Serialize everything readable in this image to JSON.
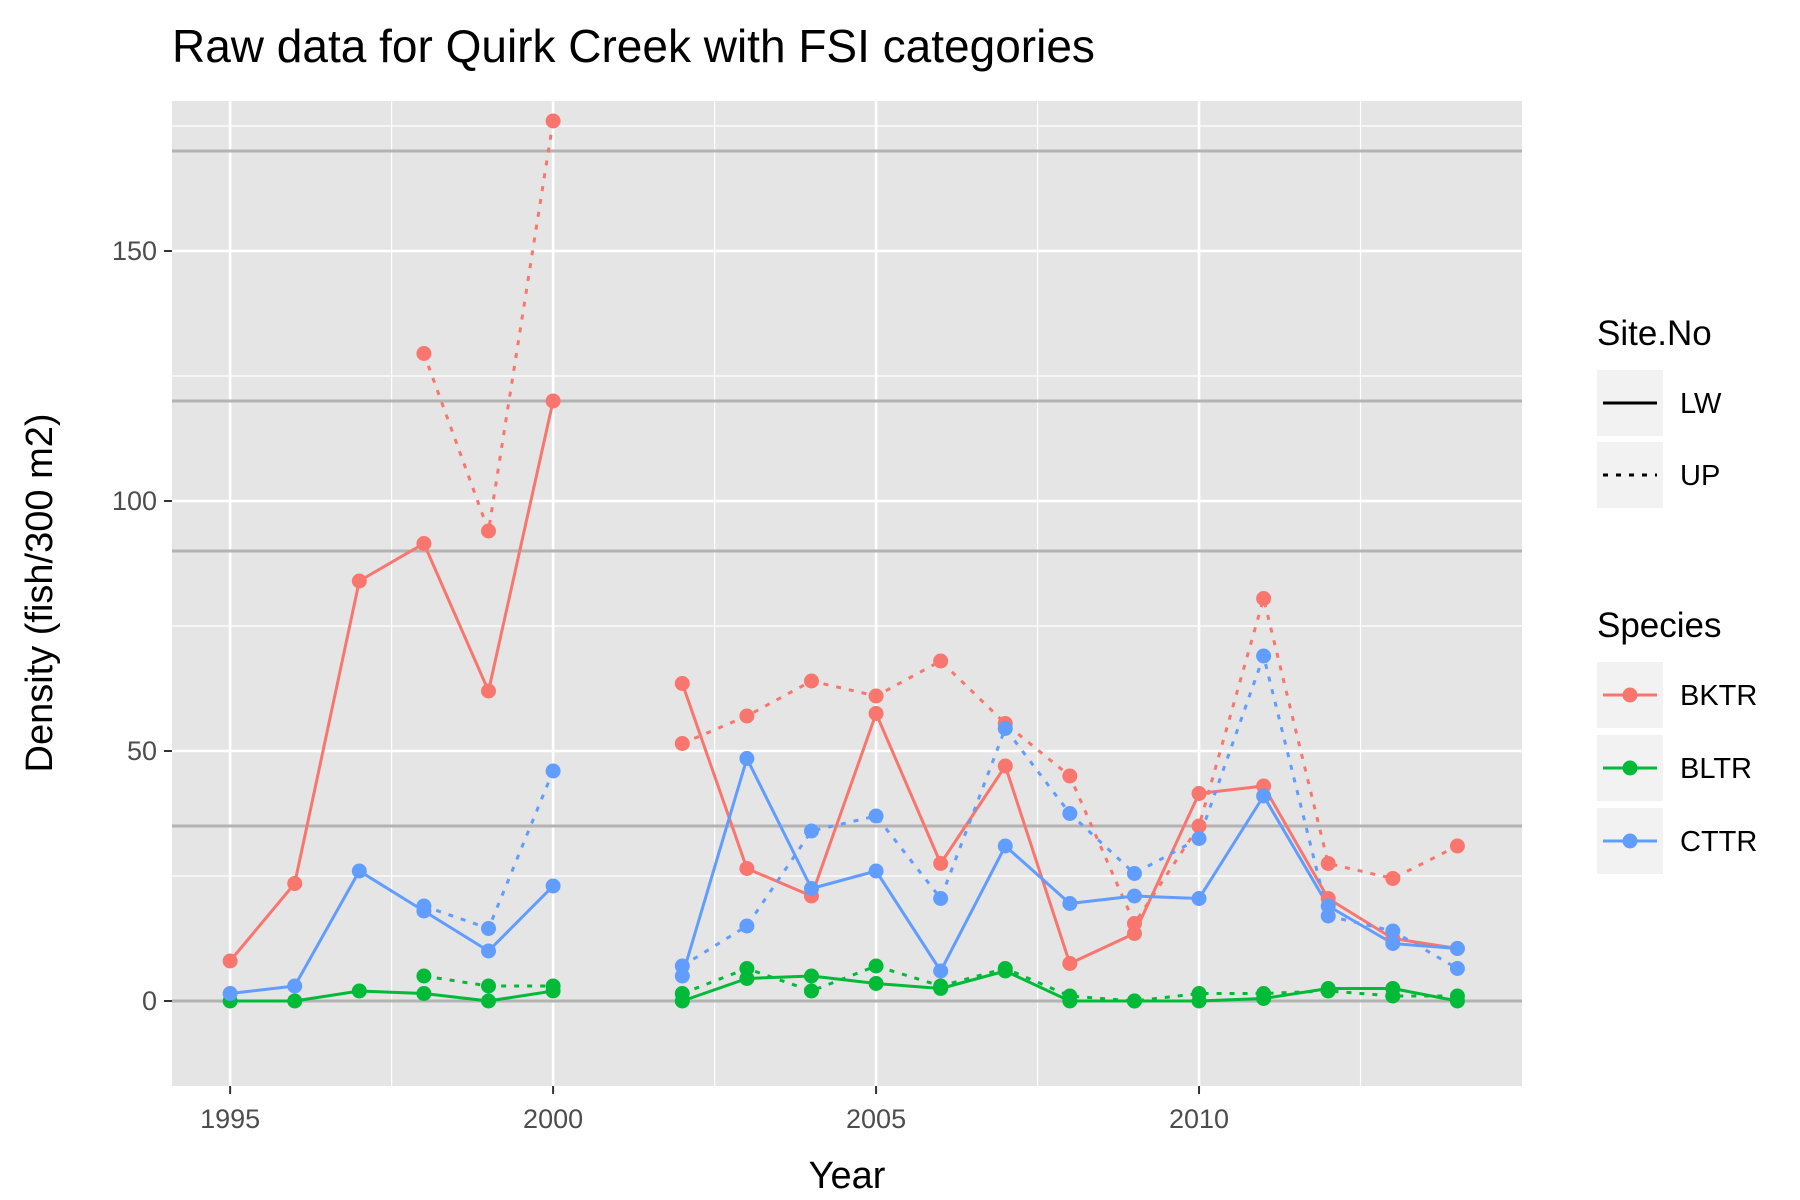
{
  "chart_data": {
    "type": "line",
    "title": "Raw data for Quirk Creek with FSI categories",
    "xlabel": "Year",
    "ylabel": "Density (fish/300 m2)",
    "xlim": [
      1994.1,
      2015.0
    ],
    "ylim": [
      -17,
      180
    ],
    "x_ticks": [
      1995,
      2000,
      2005,
      2010
    ],
    "x_tick_labels": [
      "1995",
      "2000",
      "2005",
      "2010"
    ],
    "y_ticks": [
      0,
      50,
      100,
      150
    ],
    "y_tick_labels": [
      "0",
      "50",
      "100",
      "150"
    ],
    "x_minor_ticks": [
      1997.5,
      2002.5,
      2007.5,
      2012.5
    ],
    "y_minor_ticks": [
      25,
      75,
      125,
      175
    ],
    "reference_lines": [
      0,
      35,
      90,
      120,
      170
    ],
    "grid": true,
    "legend_position": "right",
    "legends": {
      "site": {
        "title": "Site.No",
        "entries": [
          {
            "label": "LW",
            "dash": "solid"
          },
          {
            "label": "UP",
            "dash": "dotted"
          }
        ]
      },
      "species": {
        "title": "Species",
        "entries": [
          {
            "label": "BKTR",
            "color": "#F8766D"
          },
          {
            "label": "BLTR",
            "color": "#00BA38"
          },
          {
            "label": "CTTR",
            "color": "#619CFF"
          }
        ]
      }
    },
    "colors": {
      "BKTR": "#F8766D",
      "BLTR": "#00BA38",
      "CTTR": "#619CFF",
      "panel": "#E5E5E5",
      "grid": "#FFFFFF",
      "reference_line": "#B3B3B3"
    },
    "series": [
      {
        "species": "BKTR",
        "site": "LW",
        "segments": [
          [
            [
              1995,
              8
            ],
            [
              1996,
              23.5
            ],
            [
              1997,
              84
            ],
            [
              1998,
              91.5
            ],
            [
              1999,
              62
            ],
            [
              2000,
              120
            ]
          ],
          [
            [
              2002,
              63.5
            ],
            [
              2003,
              26.5
            ],
            [
              2004,
              21
            ],
            [
              2005,
              57.5
            ],
            [
              2006,
              27.5
            ],
            [
              2007,
              47
            ],
            [
              2008,
              7.5
            ],
            [
              2009,
              13.5
            ],
            [
              2010,
              41.5
            ],
            [
              2011,
              43
            ],
            [
              2012,
              20.5
            ],
            [
              2013,
              12.5
            ],
            [
              2014,
              10.5
            ]
          ]
        ]
      },
      {
        "species": "BKTR",
        "site": "UP",
        "segments": [
          [
            [
              1998,
              129.5
            ],
            [
              1999,
              94
            ],
            [
              2000,
              176
            ]
          ],
          [
            [
              2002,
              51.5
            ],
            [
              2003,
              57
            ],
            [
              2004,
              64
            ],
            [
              2005,
              61
            ],
            [
              2006,
              68
            ],
            [
              2007,
              55.5
            ],
            [
              2008,
              45
            ],
            [
              2009,
              15.5
            ],
            [
              2010,
              35
            ],
            [
              2011,
              80.5
            ],
            [
              2012,
              27.5
            ],
            [
              2013,
              24.5
            ],
            [
              2014,
              31
            ]
          ]
        ]
      },
      {
        "species": "BLTR",
        "site": "LW",
        "segments": [
          [
            [
              1995,
              0
            ],
            [
              1996,
              0
            ],
            [
              1997,
              2
            ],
            [
              1998,
              1.5
            ],
            [
              1999,
              0
            ],
            [
              2000,
              2
            ]
          ],
          [
            [
              2002,
              0
            ],
            [
              2003,
              4.5
            ],
            [
              2004,
              5
            ],
            [
              2005,
              3.5
            ],
            [
              2006,
              2.5
            ],
            [
              2007,
              6
            ],
            [
              2008,
              0
            ],
            [
              2009,
              0
            ],
            [
              2010,
              0
            ],
            [
              2011,
              0.5
            ],
            [
              2012,
              2.5
            ],
            [
              2013,
              2.5
            ],
            [
              2014,
              0
            ]
          ]
        ]
      },
      {
        "species": "BLTR",
        "site": "UP",
        "segments": [
          [
            [
              1998,
              5
            ],
            [
              1999,
              3
            ],
            [
              2000,
              3
            ]
          ],
          [
            [
              2002,
              1.5
            ],
            [
              2003,
              6.5
            ],
            [
              2004,
              2
            ],
            [
              2005,
              7
            ],
            [
              2006,
              3
            ],
            [
              2007,
              6.5
            ],
            [
              2008,
              1
            ],
            [
              2009,
              0
            ],
            [
              2010,
              1.5
            ],
            [
              2011,
              1.5
            ],
            [
              2012,
              2
            ],
            [
              2013,
              1
            ],
            [
              2014,
              1
            ]
          ]
        ]
      },
      {
        "species": "CTTR",
        "site": "LW",
        "segments": [
          [
            [
              1995,
              1.5
            ],
            [
              1996,
              3
            ],
            [
              1997,
              26
            ],
            [
              1998,
              18
            ],
            [
              1999,
              10
            ],
            [
              2000,
              23
            ]
          ],
          [
            [
              2002,
              5
            ],
            [
              2003,
              48.5
            ],
            [
              2004,
              22.5
            ],
            [
              2005,
              26
            ],
            [
              2006,
              6
            ],
            [
              2007,
              31
            ],
            [
              2008,
              19.5
            ],
            [
              2009,
              21
            ],
            [
              2010,
              20.5
            ],
            [
              2011,
              41
            ],
            [
              2012,
              19
            ],
            [
              2013,
              11.5
            ],
            [
              2014,
              10.5
            ]
          ]
        ]
      },
      {
        "species": "CTTR",
        "site": "UP",
        "segments": [
          [
            [
              1998,
              19
            ],
            [
              1999,
              14.5
            ],
            [
              2000,
              46
            ]
          ],
          [
            [
              2002,
              7
            ],
            [
              2003,
              15
            ],
            [
              2004,
              34
            ],
            [
              2005,
              37
            ],
            [
              2006,
              20.5
            ],
            [
              2007,
              54.5
            ],
            [
              2008,
              37.5
            ],
            [
              2009,
              25.5
            ],
            [
              2010,
              32.5
            ],
            [
              2011,
              69
            ],
            [
              2012,
              17
            ],
            [
              2013,
              14
            ],
            [
              2014,
              6.5
            ]
          ]
        ]
      }
    ]
  }
}
